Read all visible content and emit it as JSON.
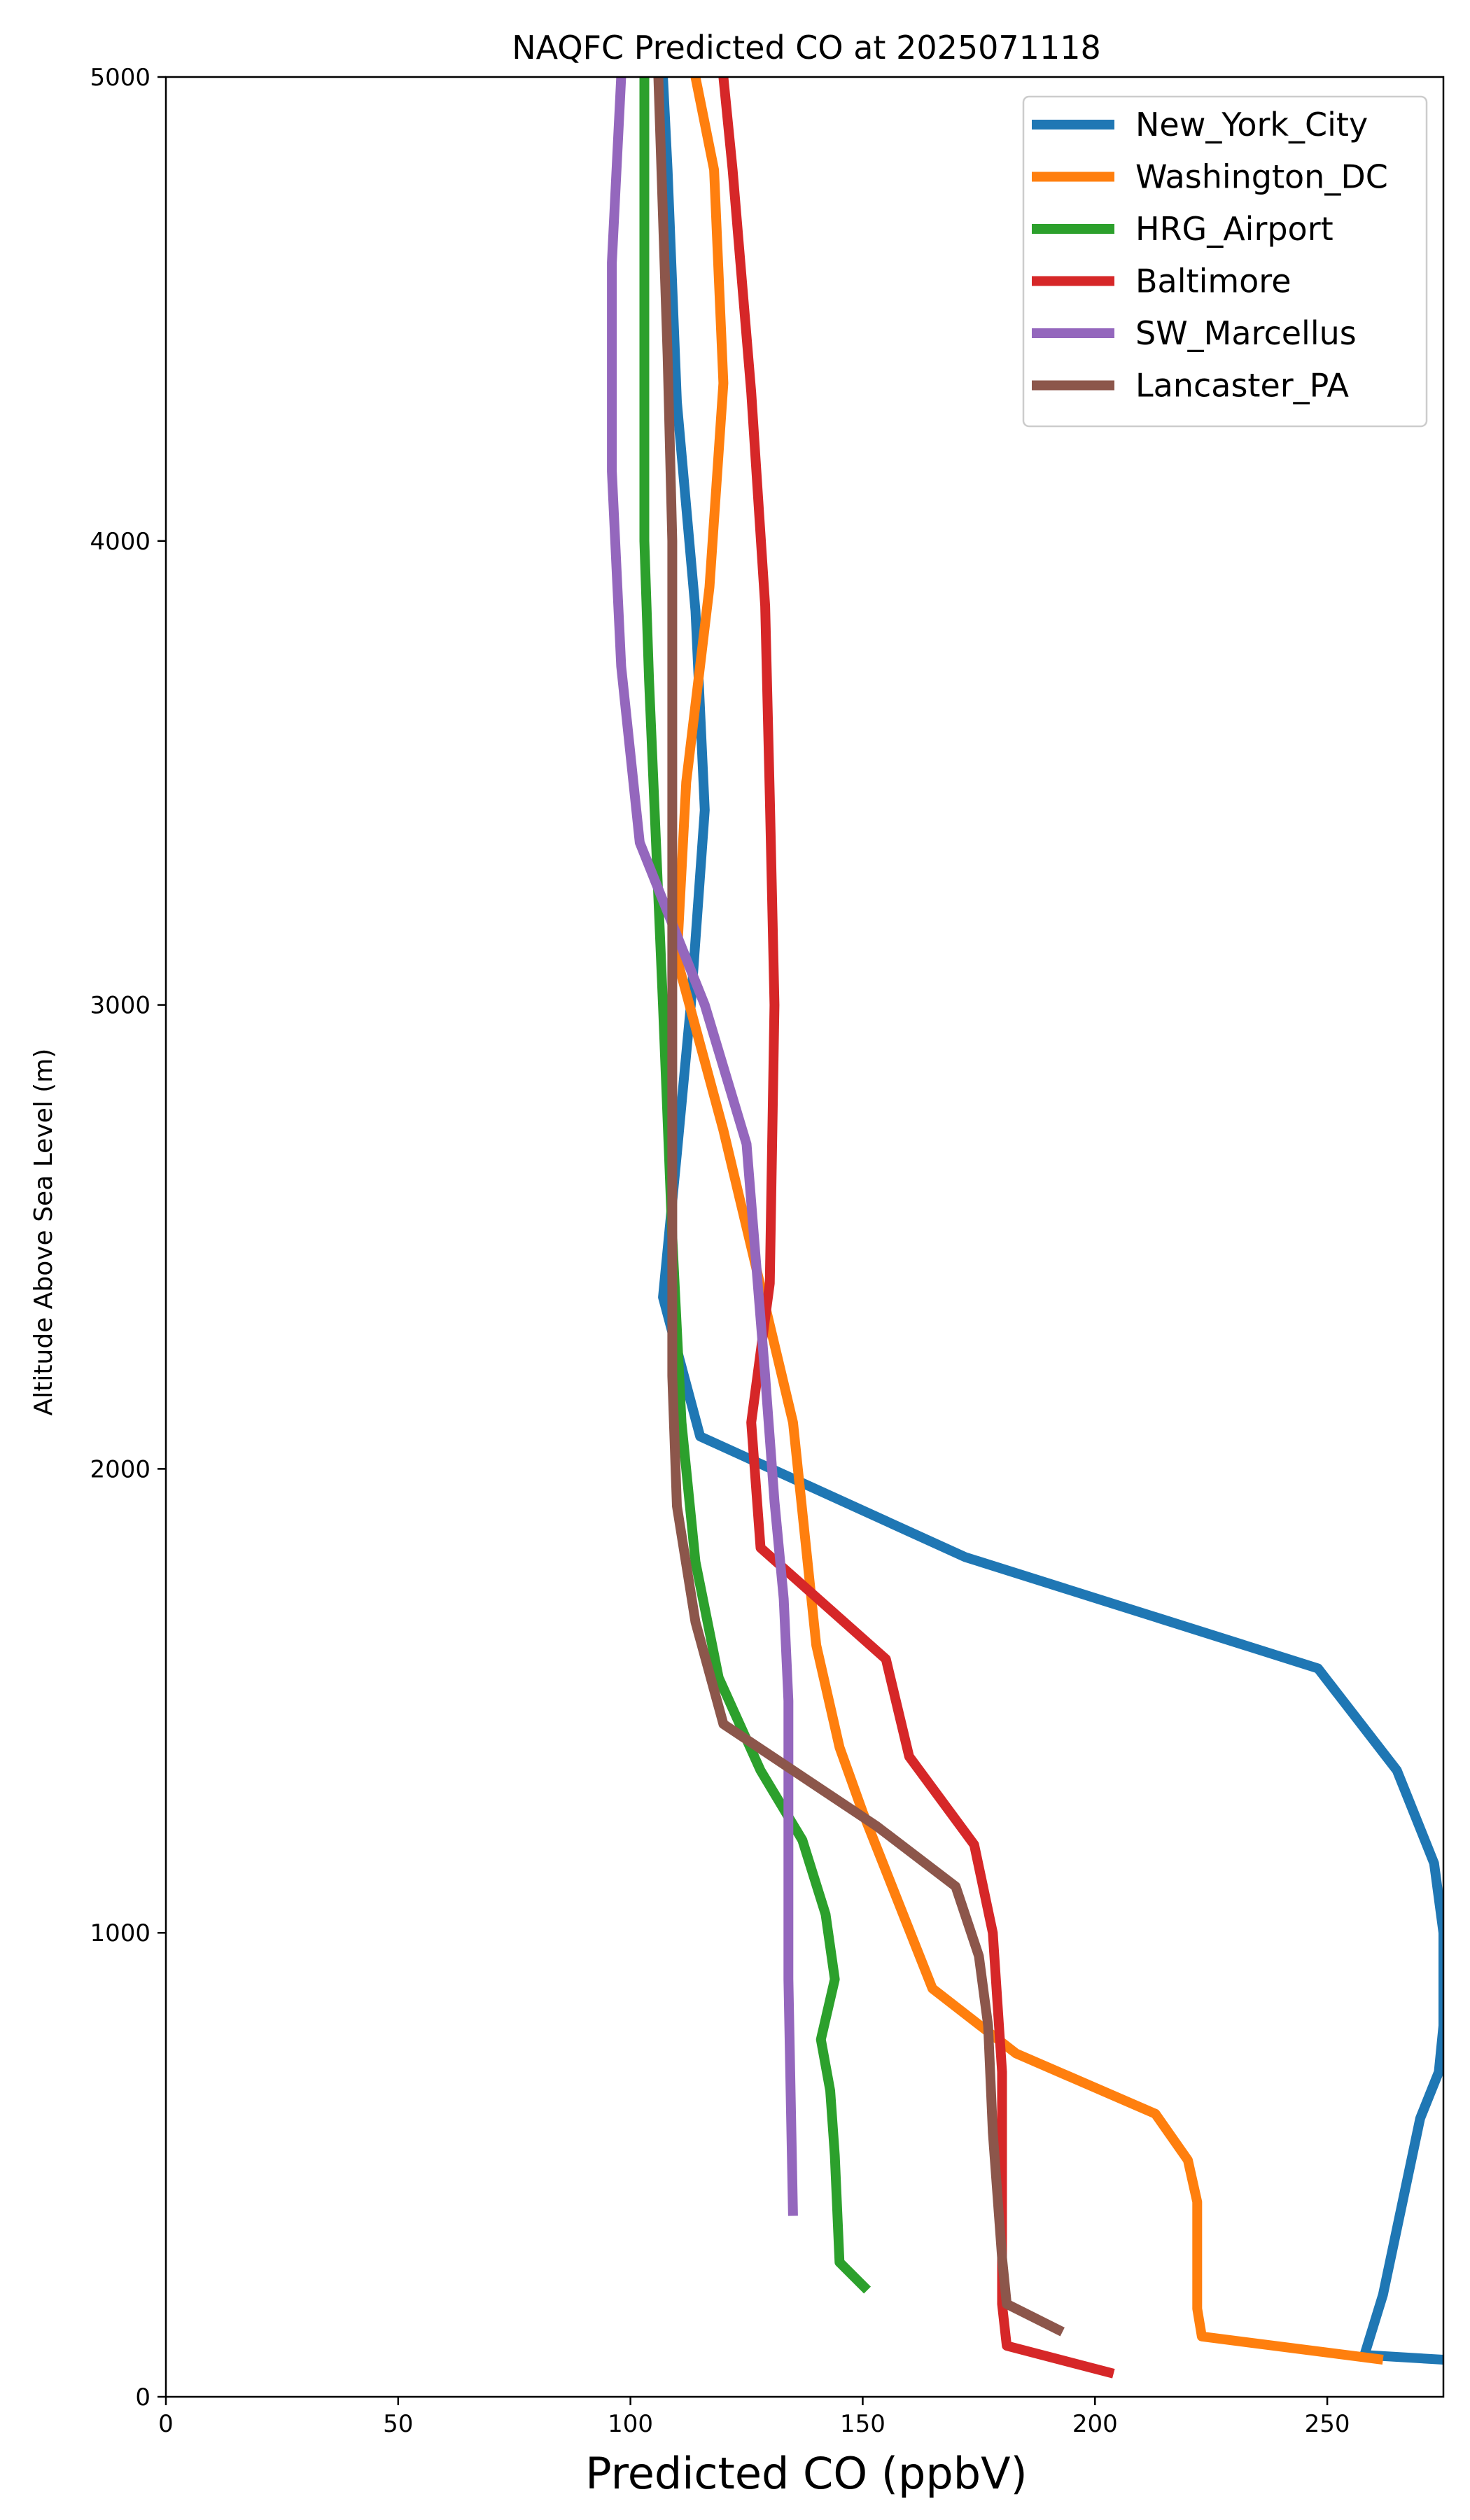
{
  "chart_data": {
    "type": "line",
    "title": "NAQFC Predicted CO at 2025071118",
    "xlabel": "Predicted CO (ppbV)",
    "ylabel": "Altitude Above Sea Level (m)",
    "xlim": [
      0,
      275
    ],
    "ylim": [
      0,
      5000
    ],
    "xticks": [
      0,
      50,
      100,
      150,
      200,
      250
    ],
    "yticks": [
      0,
      1000,
      2000,
      3000,
      4000,
      5000
    ],
    "grid": false,
    "legend_position": "upper right",
    "series": [
      {
        "name": "New_York_City",
        "color": "#1f77b4",
        "points": [
          [
            275,
            80
          ],
          [
            258,
            90
          ],
          [
            262,
            220
          ],
          [
            270,
            600
          ],
          [
            274,
            700
          ],
          [
            275,
            800
          ],
          [
            275,
            1000
          ],
          [
            273,
            1150
          ],
          [
            265,
            1350
          ],
          [
            248,
            1570
          ],
          [
            172,
            1810
          ],
          [
            115,
            2070
          ],
          [
            107,
            2370
          ],
          [
            110,
            2680
          ],
          [
            113,
            3000
          ],
          [
            116,
            3420
          ],
          [
            114,
            3850
          ],
          [
            110,
            4300
          ],
          [
            108,
            4800
          ],
          [
            107,
            5000
          ]
        ]
      },
      {
        "name": "Washington_DC",
        "color": "#ff7f0e",
        "points": [
          [
            262,
            80
          ],
          [
            223,
            130
          ],
          [
            222,
            190
          ],
          [
            222,
            420
          ],
          [
            220,
            510
          ],
          [
            213,
            610
          ],
          [
            183,
            740
          ],
          [
            165,
            880
          ],
          [
            150,
            1260
          ],
          [
            145,
            1400
          ],
          [
            140,
            1620
          ],
          [
            135,
            2100
          ],
          [
            120,
            2730
          ],
          [
            110,
            3100
          ],
          [
            112,
            3480
          ],
          [
            117,
            3900
          ],
          [
            120,
            4340
          ],
          [
            118,
            4800
          ],
          [
            114,
            5000
          ]
        ]
      },
      {
        "name": "HRG_Airport",
        "color": "#2ca02c",
        "points": [
          [
            151,
            230
          ],
          [
            145,
            290
          ],
          [
            144,
            520
          ],
          [
            143,
            660
          ],
          [
            141,
            770
          ],
          [
            144,
            900
          ],
          [
            142,
            1040
          ],
          [
            137,
            1200
          ],
          [
            128,
            1350
          ],
          [
            119,
            1550
          ],
          [
            114,
            1800
          ],
          [
            111,
            2100
          ],
          [
            109,
            2500
          ],
          [
            107,
            3000
          ],
          [
            104,
            3700
          ],
          [
            103,
            4000
          ],
          [
            103,
            4500
          ],
          [
            103,
            5000
          ]
        ]
      },
      {
        "name": "Baltimore",
        "color": "#d62728",
        "points": [
          [
            204,
            50
          ],
          [
            181,
            110
          ],
          [
            180,
            200
          ],
          [
            180,
            700
          ],
          [
            178,
            1000
          ],
          [
            174,
            1190
          ],
          [
            160,
            1380
          ],
          [
            155,
            1590
          ],
          [
            128,
            1830
          ],
          [
            126,
            2100
          ],
          [
            130,
            2400
          ],
          [
            131,
            3000
          ],
          [
            130,
            3450
          ],
          [
            129,
            3860
          ],
          [
            126,
            4320
          ],
          [
            122,
            4800
          ],
          [
            120,
            5000
          ]
        ]
      },
      {
        "name": "SW_Marcellus",
        "color": "#9467bd",
        "points": [
          [
            135,
            390
          ],
          [
            134,
            900
          ],
          [
            134,
            1200
          ],
          [
            134,
            1500
          ],
          [
            133,
            1720
          ],
          [
            131,
            1930
          ],
          [
            129,
            2200
          ],
          [
            125,
            2700
          ],
          [
            116,
            3000
          ],
          [
            102,
            3350
          ],
          [
            98,
            3730
          ],
          [
            96,
            4150
          ],
          [
            96,
            4600
          ],
          [
            98,
            5000
          ]
        ]
      },
      {
        "name": "Lancaster_PA",
        "color": "#8c564b",
        "points": [
          [
            193,
            140
          ],
          [
            181,
            200
          ],
          [
            180,
            300
          ],
          [
            178,
            570
          ],
          [
            177,
            800
          ],
          [
            175,
            950
          ],
          [
            170,
            1100
          ],
          [
            153,
            1230
          ],
          [
            120,
            1450
          ],
          [
            114,
            1670
          ],
          [
            110,
            1920
          ],
          [
            109,
            2200
          ],
          [
            109,
            2600
          ],
          [
            109,
            3000
          ],
          [
            109,
            3500
          ],
          [
            109,
            4000
          ],
          [
            108,
            4400
          ],
          [
            106,
            5000
          ]
        ]
      }
    ]
  }
}
